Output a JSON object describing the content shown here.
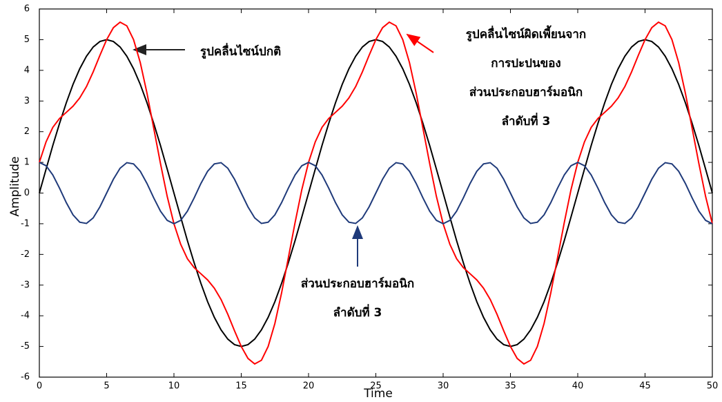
{
  "chart_data": {
    "type": "line",
    "x_label": "Time",
    "y_label": "Amplitude",
    "xlim": [
      0,
      50
    ],
    "ylim": [
      -6,
      6
    ],
    "xticks": [
      0,
      5,
      10,
      15,
      20,
      25,
      30,
      35,
      40,
      45,
      50
    ],
    "yticks": [
      -6,
      -5,
      -4,
      -3,
      -2,
      -1,
      0,
      1,
      2,
      3,
      4,
      5,
      6
    ],
    "x": [
      0,
      0.5,
      1,
      1.5,
      2,
      2.5,
      3,
      3.5,
      4,
      4.5,
      5,
      5.5,
      6,
      6.5,
      7,
      7.5,
      8,
      8.5,
      9,
      9.5,
      10,
      10.5,
      11,
      11.5,
      12,
      12.5,
      13,
      13.5,
      14,
      14.5,
      15,
      15.5,
      16,
      16.5,
      17,
      17.5,
      18,
      18.5,
      19,
      19.5,
      20,
      20.5,
      21,
      21.5,
      22,
      22.5,
      23,
      23.5,
      24,
      24.5,
      25,
      25.5,
      26,
      26.5,
      27,
      27.5,
      28,
      28.5,
      29,
      29.5,
      30,
      30.5,
      31,
      31.5,
      32,
      32.5,
      33,
      33.5,
      34,
      34.5,
      35,
      35.5,
      36,
      36.5,
      37,
      37.5,
      38,
      38.5,
      39,
      39.5,
      40,
      40.5,
      41,
      41.5,
      42,
      42.5,
      43,
      43.5,
      44,
      44.5,
      45,
      45.5,
      46,
      46.5,
      47,
      47.5,
      48,
      48.5,
      49,
      49.5,
      50
    ],
    "series": [
      {
        "color": "#000000",
        "values": [
          0,
          0.78,
          1.55,
          2.27,
          2.94,
          3.54,
          4.05,
          4.46,
          4.76,
          4.94,
          5,
          4.94,
          4.76,
          4.46,
          4.05,
          3.54,
          2.94,
          2.27,
          1.55,
          0.78,
          0,
          -0.78,
          -1.55,
          -2.27,
          -2.94,
          -3.54,
          -4.05,
          -4.46,
          -4.76,
          -4.94,
          -5,
          -4.94,
          -4.76,
          -4.46,
          -4.05,
          -3.54,
          -2.94,
          -2.27,
          -1.55,
          -0.78,
          0,
          0.78,
          1.55,
          2.27,
          2.94,
          3.54,
          4.05,
          4.46,
          4.76,
          4.94,
          5,
          4.94,
          4.76,
          4.46,
          4.05,
          3.54,
          2.94,
          2.27,
          1.55,
          0.78,
          0,
          -0.78,
          -1.55,
          -2.27,
          -2.94,
          -3.54,
          -4.05,
          -4.46,
          -4.76,
          -4.94,
          -5,
          -4.94,
          -4.76,
          -4.46,
          -4.05,
          -3.54,
          -2.94,
          -2.27,
          -1.55,
          -0.78,
          0,
          0.78,
          1.55,
          2.27,
          2.94,
          3.54,
          4.05,
          4.46,
          4.76,
          4.94,
          5,
          4.94,
          4.76,
          4.46,
          4.05,
          3.54,
          2.94,
          2.27,
          1.55,
          0.78,
          0
        ]
      },
      {
        "color": "#ff0000",
        "values": [
          1,
          1.67,
          2.14,
          2.43,
          2.63,
          2.83,
          3.1,
          3.47,
          3.95,
          4.49,
          5,
          5.39,
          5.57,
          5.45,
          5,
          4.25,
          3.25,
          2.11,
          0.96,
          -0.11,
          -1,
          -1.67,
          -2.14,
          -2.43,
          -2.63,
          -2.83,
          -3.1,
          -3.47,
          -3.95,
          -4.49,
          -5,
          -5.39,
          -5.57,
          -5.45,
          -5,
          -4.25,
          -3.25,
          -2.11,
          -0.96,
          0.11,
          1,
          1.67,
          2.14,
          2.43,
          2.63,
          2.83,
          3.1,
          3.47,
          3.95,
          4.49,
          5,
          5.39,
          5.57,
          5.45,
          5,
          4.25,
          3.25,
          2.11,
          0.96,
          -0.11,
          -1,
          -1.67,
          -2.14,
          -2.43,
          -2.63,
          -2.83,
          -3.1,
          -3.47,
          -3.95,
          -4.49,
          -5,
          -5.39,
          -5.57,
          -5.45,
          -5,
          -4.25,
          -3.25,
          -2.11,
          -0.96,
          0.11,
          1,
          1.67,
          2.14,
          2.43,
          2.63,
          2.83,
          3.1,
          3.47,
          3.95,
          4.49,
          5,
          5.39,
          5.57,
          5.45,
          5,
          4.25,
          3.25,
          2.11,
          0.96,
          -0.11,
          -1
        ]
      },
      {
        "color": "#1f3a7a",
        "values": [
          1,
          0.89,
          0.59,
          0.16,
          -0.31,
          -0.71,
          -0.95,
          -0.99,
          -0.81,
          -0.45,
          0,
          0.45,
          0.81,
          0.99,
          0.95,
          0.71,
          0.31,
          -0.16,
          -0.59,
          -0.89,
          -1,
          -0.89,
          -0.59,
          -0.16,
          0.31,
          0.71,
          0.95,
          0.99,
          0.81,
          0.45,
          0,
          -0.45,
          -0.81,
          -0.99,
          -0.95,
          -0.71,
          -0.31,
          0.16,
          0.59,
          0.89,
          1,
          0.89,
          0.59,
          0.16,
          -0.31,
          -0.71,
          -0.95,
          -0.99,
          -0.81,
          -0.45,
          0,
          0.45,
          0.81,
          0.99,
          0.95,
          0.71,
          0.31,
          -0.16,
          -0.59,
          -0.89,
          -1,
          -0.89,
          -0.59,
          -0.16,
          0.31,
          0.71,
          0.95,
          0.99,
          0.81,
          0.45,
          0,
          -0.45,
          -0.81,
          -0.99,
          -0.95,
          -0.71,
          -0.31,
          0.16,
          0.59,
          0.89,
          1,
          0.89,
          0.59,
          0.16,
          -0.31,
          -0.71,
          -0.95,
          -0.99,
          -0.81,
          -0.45,
          0,
          0.45,
          0.81,
          0.99,
          0.95,
          0.71,
          0.31,
          -0.16,
          -0.59,
          -0.89,
          -1
        ]
      }
    ],
    "annotations": [
      {
        "lines": [
          "รูปคลื่นไซน์ปกติ"
        ]
      },
      {
        "lines": [
          "รูปคลื่นไซน์ผิดเพี้ยนจาก",
          "การปะปนของ",
          "ส่วนประกอบฮาร์มอนิก",
          "ลำดับที่ 3"
        ]
      },
      {
        "lines": [
          "ส่วนประกอบฮาร์มอนิก",
          "ลำดับที่ 3"
        ]
      }
    ]
  }
}
